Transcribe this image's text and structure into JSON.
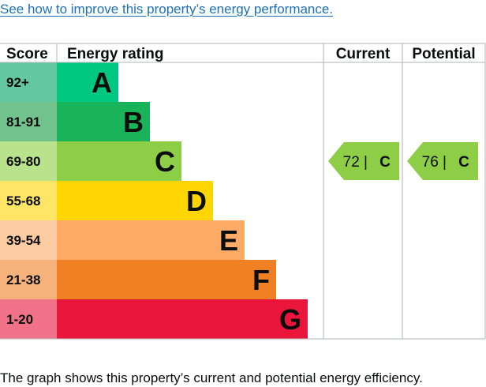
{
  "link_text": "See how to improve this property’s energy performance.",
  "caption": "The graph shows this property’s current and potential energy efficiency.",
  "chart_data": {
    "type": "table",
    "headers": {
      "score": "Score",
      "rating": "Energy rating",
      "current": "Current",
      "potential": "Potential"
    },
    "bands": [
      {
        "range": "92+",
        "letter": "A",
        "color": "#00c781",
        "score_color": "#64c7a3"
      },
      {
        "range": "81-91",
        "letter": "B",
        "color": "#19b459",
        "score_color": "#72c28e"
      },
      {
        "range": "69-80",
        "letter": "C",
        "color": "#8dce46",
        "score_color": "#b8e28c"
      },
      {
        "range": "55-68",
        "letter": "D",
        "color": "#ffd500",
        "score_color": "#ffe566"
      },
      {
        "range": "39-54",
        "letter": "E",
        "color": "#fcaa65",
        "score_color": "#fdcca2"
      },
      {
        "range": "21-38",
        "letter": "F",
        "color": "#ef8023",
        "score_color": "#f5b37b"
      },
      {
        "range": "1-20",
        "letter": "G",
        "color": "#e9153b",
        "score_color": "#f27389"
      }
    ],
    "current": {
      "value": 72,
      "letter": "C",
      "band_index": 2,
      "color": "#8dce46"
    },
    "potential": {
      "value": 76,
      "letter": "C",
      "band_index": 2,
      "color": "#8dce46"
    },
    "border_color": "#b1b4b6"
  }
}
